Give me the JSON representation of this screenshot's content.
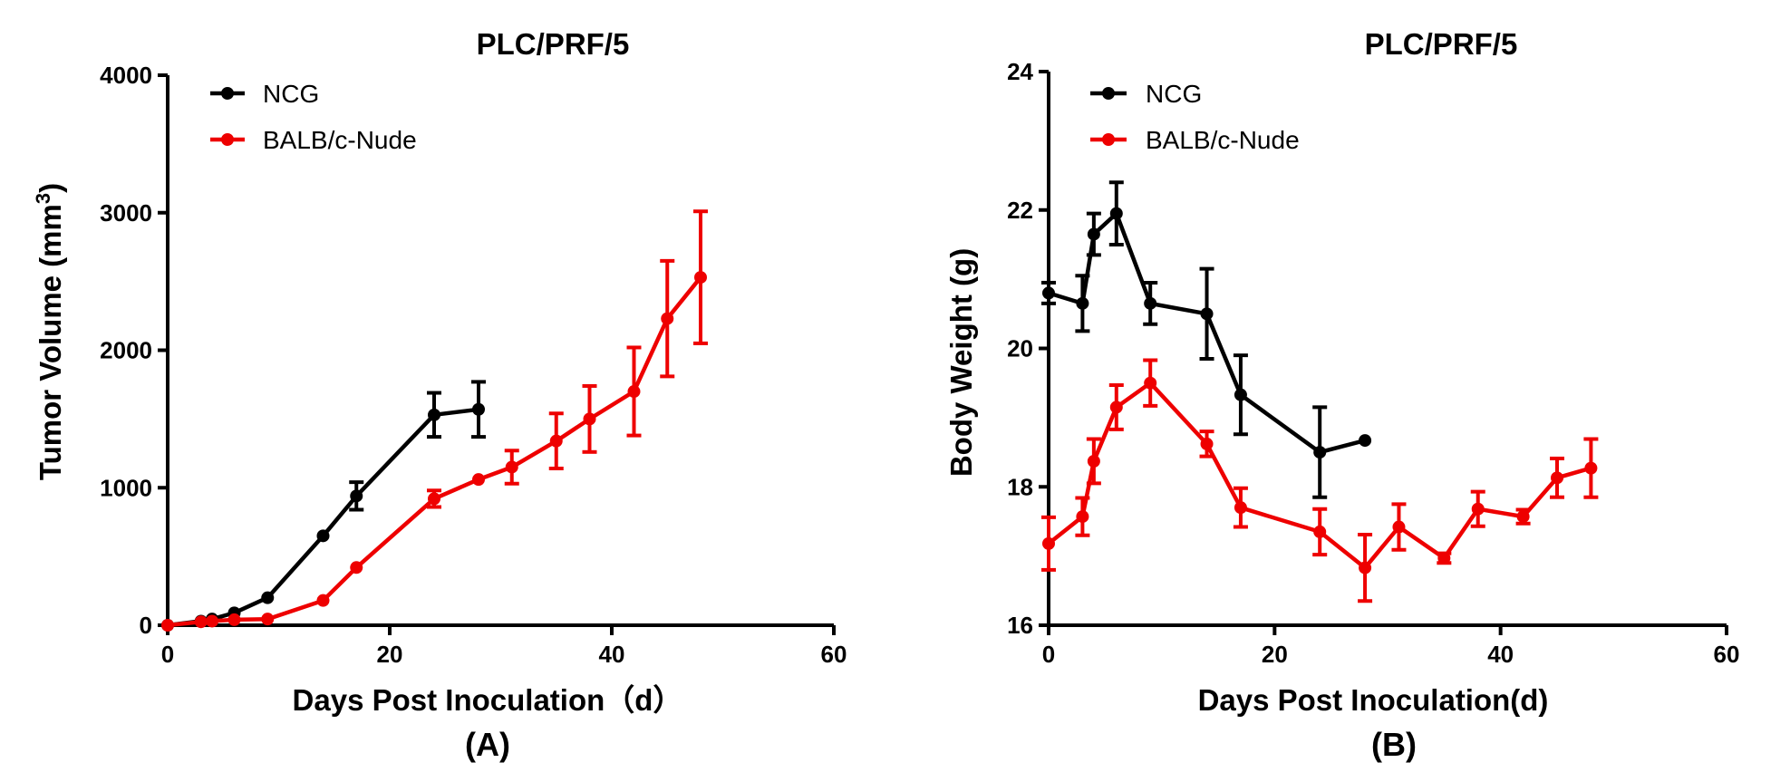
{
  "colors": {
    "ncg": "#000000",
    "balb": "#ee0000",
    "axis": "#000000"
  },
  "chart_data": [
    {
      "type": "line",
      "panel_label": "(A)",
      "title": "PLC/PRF/5",
      "xlabel": "Days Post Inoculation（d）",
      "ylabel": "Tumor Volume (mm",
      "ylabel_sup": "3",
      "ylabel_end": ")",
      "xlim": [
        0,
        60
      ],
      "ylim": [
        0,
        4000
      ],
      "xticks": [
        0,
        20,
        40,
        60
      ],
      "yticks": [
        0,
        1000,
        2000,
        3000,
        4000
      ],
      "legend_position": "top-left",
      "series": [
        {
          "name": "NCG",
          "color": "#000000",
          "x": [
            0,
            3,
            4,
            6,
            9,
            14,
            17,
            24,
            28
          ],
          "y": [
            0,
            30,
            45,
            90,
            200,
            650,
            940,
            1530,
            1570
          ],
          "err": [
            0,
            0,
            0,
            0,
            0,
            0,
            100,
            160,
            200
          ]
        },
        {
          "name": "BALB/c-Nude",
          "color": "#ee0000",
          "x": [
            0,
            3,
            4,
            6,
            9,
            14,
            17,
            24,
            28,
            31,
            35,
            38,
            42,
            45,
            48
          ],
          "y": [
            0,
            25,
            30,
            40,
            45,
            180,
            420,
            920,
            1060,
            1150,
            1340,
            1500,
            1700,
            2230,
            2530
          ],
          "err": [
            0,
            0,
            0,
            0,
            0,
            0,
            0,
            60,
            0,
            120,
            200,
            240,
            320,
            420,
            480
          ]
        }
      ]
    },
    {
      "type": "line",
      "panel_label": "(B)",
      "title": "PLC/PRF/5",
      "xlabel": "Days Post Inoculation(d)",
      "ylabel": "Body Weight (g)",
      "xlim": [
        0,
        60
      ],
      "ylim": [
        16,
        24
      ],
      "xticks": [
        0,
        20,
        40,
        60
      ],
      "yticks": [
        16,
        18,
        20,
        22,
        24
      ],
      "legend_position": "top-left",
      "series": [
        {
          "name": "NCG",
          "color": "#000000",
          "x": [
            0,
            3,
            4,
            6,
            9,
            14,
            17,
            24,
            28
          ],
          "y": [
            20.8,
            20.65,
            21.65,
            21.95,
            20.65,
            20.5,
            19.33,
            18.5,
            18.67
          ],
          "err": [
            0.15,
            0.4,
            0.3,
            0.45,
            0.3,
            0.65,
            0.57,
            0.65,
            0
          ]
        },
        {
          "name": "BALB/c-Nude",
          "color": "#ee0000",
          "x": [
            0,
            3,
            4,
            6,
            9,
            14,
            17,
            24,
            28,
            31,
            35,
            38,
            42,
            45,
            48
          ],
          "y": [
            17.18,
            17.57,
            18.37,
            19.15,
            19.5,
            18.62,
            17.7,
            17.35,
            16.83,
            17.42,
            16.97,
            17.68,
            17.57,
            18.13,
            18.27
          ],
          "err": [
            0.38,
            0.27,
            0.32,
            0.32,
            0.33,
            0.18,
            0.28,
            0.33,
            0.48,
            0.33,
            0.07,
            0.25,
            0.1,
            0.28,
            0.42
          ]
        }
      ]
    }
  ]
}
